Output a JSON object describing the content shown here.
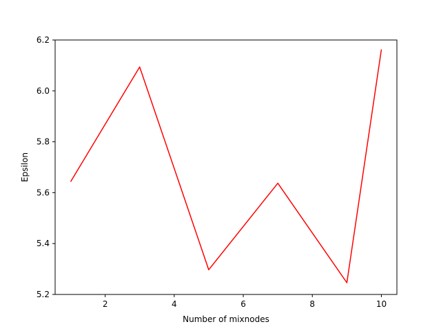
{
  "chart_data": {
    "type": "line",
    "title": "",
    "xlabel": "Number of mixnodes",
    "ylabel": "Epsilon",
    "xlim": [
      0.55,
      10.45
    ],
    "ylim": [
      5.2,
      6.2
    ],
    "xticks": [
      2,
      4,
      6,
      8,
      10
    ],
    "xtick_labels": [
      "2",
      "4",
      "6",
      "8",
      "10"
    ],
    "yticks": [
      5.2,
      5.4,
      5.6,
      5.8,
      6.0,
      6.2
    ],
    "ytick_labels": [
      "5.2",
      "5.4",
      "5.6",
      "5.8",
      "6.0",
      "6.2"
    ],
    "grid": false,
    "series": [
      {
        "color": "#ff0000",
        "x": [
          1,
          3,
          5,
          7,
          9,
          10
        ],
        "y": [
          5.643,
          6.094,
          5.297,
          5.637,
          5.246,
          6.163
        ]
      }
    ]
  }
}
